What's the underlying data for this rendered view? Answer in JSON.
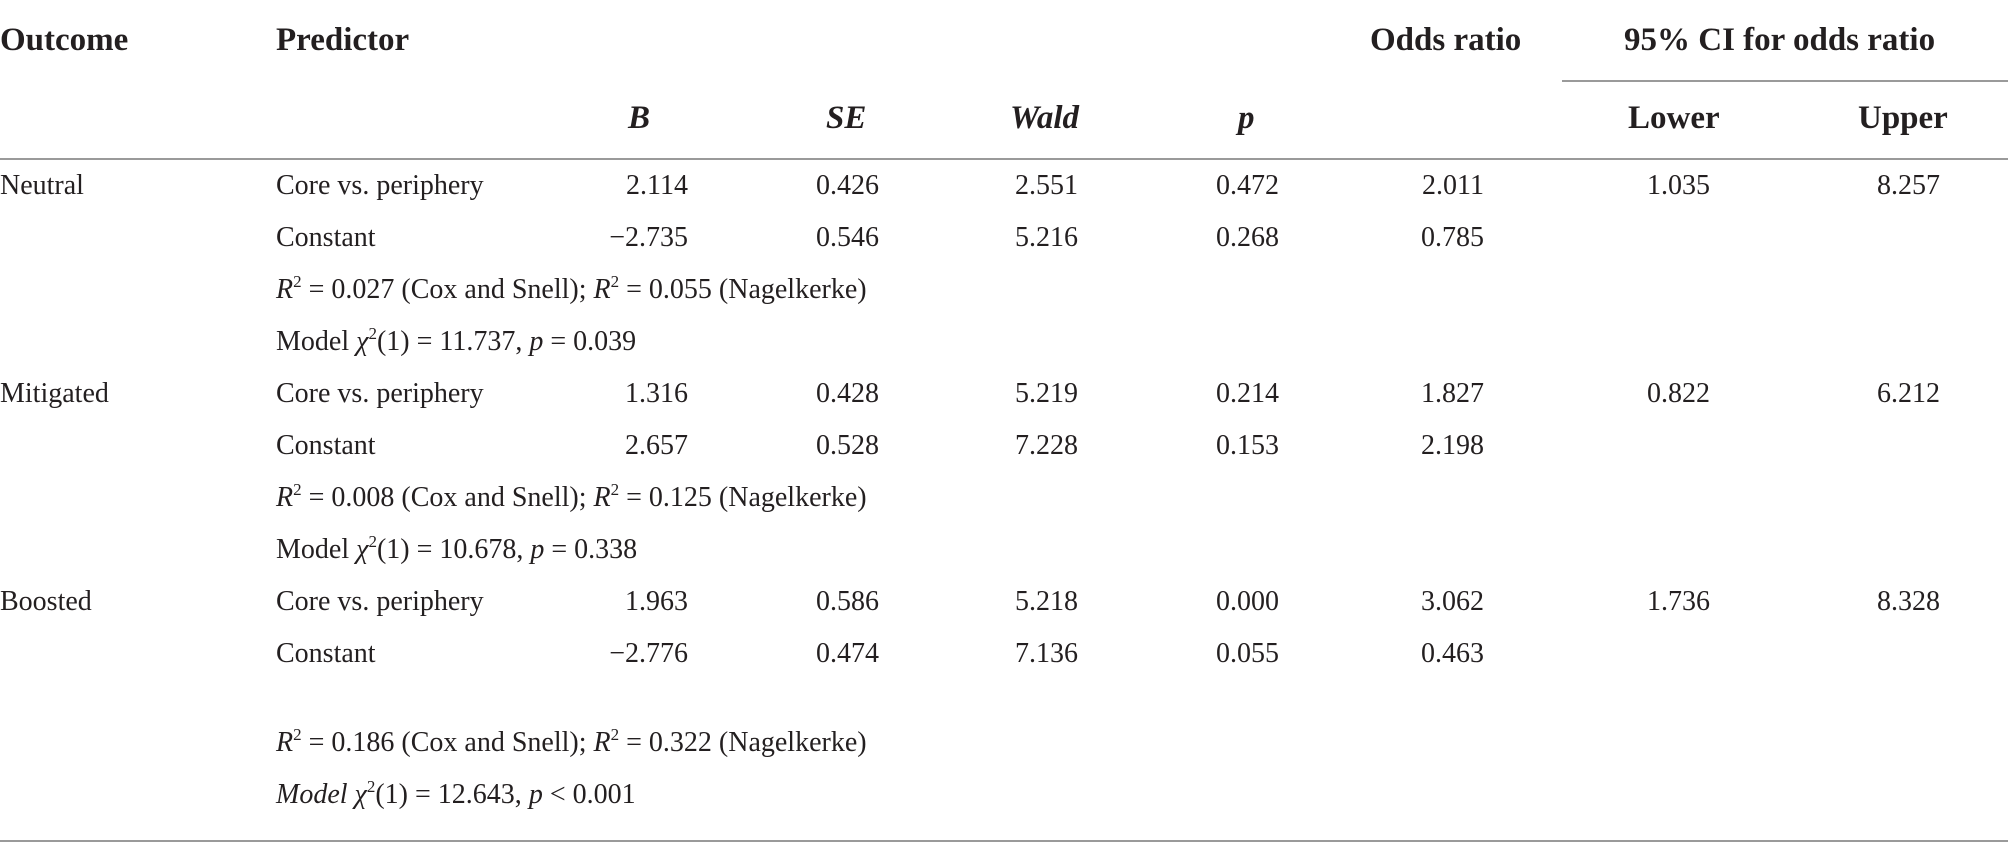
{
  "headers": {
    "outcome": "Outcome",
    "predictor": "Predictor",
    "odds_ratio": "Odds ratio",
    "ci": "95% CI for odds ratio",
    "b": "B",
    "se": "SE",
    "wald": "Wald",
    "p": "p",
    "lower": "Lower",
    "upper": "Upper"
  },
  "groups": [
    {
      "outcome": "Neutral",
      "rows": [
        {
          "predictor": "Core vs. periphery",
          "b": "2.114",
          "se": "0.426",
          "wald": "2.551",
          "p": "0.472",
          "or": "2.011",
          "lower": "1.035",
          "upper": "8.257"
        },
        {
          "predictor": "Constant",
          "b": "−2.735",
          "se": "0.546",
          "wald": "5.216",
          "p": "0.268",
          "or": "0.785",
          "lower": "",
          "upper": ""
        }
      ],
      "r2": {
        "cs": "0.027",
        "cs_label": "(Cox and Snell);",
        "nk": "0.055",
        "nk_label": "(Nagelkerke)"
      },
      "model": {
        "label": "Model",
        "chi": "(1) = 11.737,",
        "p_val": "= 0.039"
      }
    },
    {
      "outcome": "Mitigated",
      "rows": [
        {
          "predictor": "Core vs. periphery",
          "b": "1.316",
          "se": "0.428",
          "wald": "5.219",
          "p": "0.214",
          "or": "1.827",
          "lower": "0.822",
          "upper": "6.212"
        },
        {
          "predictor": "Constant",
          "b": "2.657",
          "se": "0.528",
          "wald": "7.228",
          "p": "0.153",
          "or": "2.198",
          "lower": "",
          "upper": ""
        }
      ],
      "r2": {
        "cs": "0.008",
        "cs_label": "(Cox and Snell);",
        "nk": "0.125",
        "nk_label": "(Nagelkerke)"
      },
      "model": {
        "label": "Model",
        "chi": "(1) = 10.678,",
        "p_val": "= 0.338"
      }
    },
    {
      "outcome": "Boosted",
      "rows": [
        {
          "predictor": "Core vs. periphery",
          "b": "1.963",
          "se": "0.586",
          "wald": "5.218",
          "p": "0.000",
          "or": "3.062",
          "lower": "1.736",
          "upper": "8.328"
        },
        {
          "predictor": "Constant",
          "b": "−2.776",
          "se": "0.474",
          "wald": "7.136",
          "p": "0.055",
          "or": "0.463",
          "lower": "",
          "upper": ""
        }
      ],
      "r2": {
        "cs": "0.186",
        "cs_label": "(Cox and Snell);",
        "nk": "0.322",
        "nk_label": "(Nagelkerke)"
      },
      "model": {
        "label": "Model",
        "chi": "(1) = 12.643,",
        "p_val": "< 0.001"
      }
    }
  ]
}
